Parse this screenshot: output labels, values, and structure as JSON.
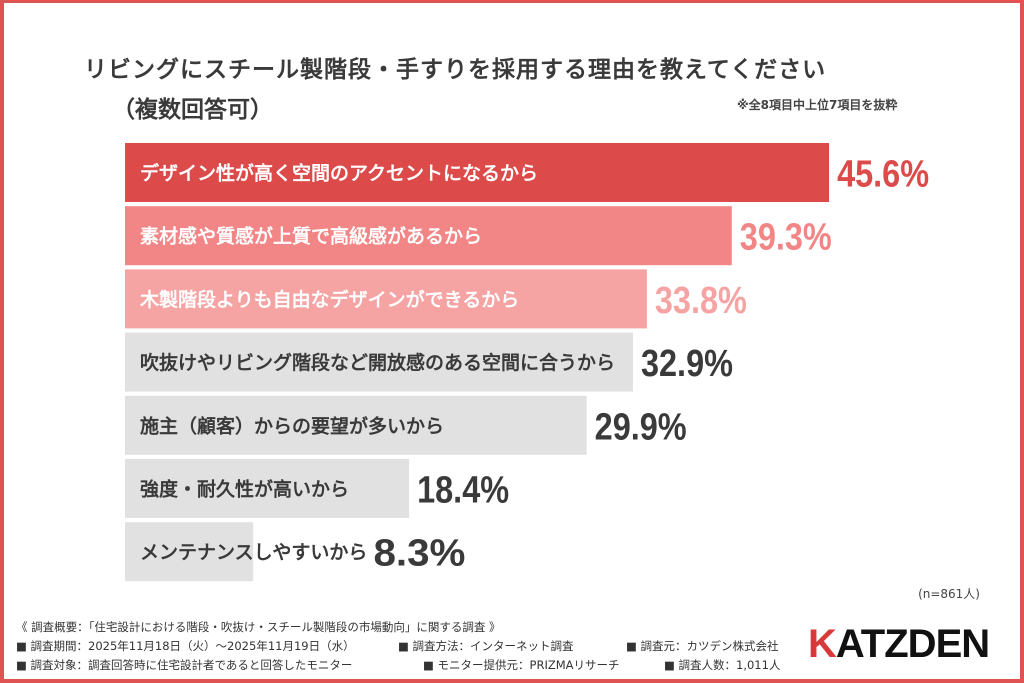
{
  "chart_data": {
    "type": "bar",
    "orientation": "horizontal",
    "title": "リビングにスチール製階段・手すりを採用する理由を教えてください",
    "subtitle": "（複数回答可）",
    "note": "※全8項目中上位7項目を抜粋",
    "categories": [
      "デザイン性が高く空間のアクセントになるから",
      "素材感や質感が上質で高級感があるから",
      "木製階段よりも自由なデザインができるから",
      "吹抜けやリビング階段など開放感のある空間に合うから",
      "施主（顧客）からの要望が多いから",
      "強度・耐久性が高いから",
      "メンテナンスしやすいから"
    ],
    "values": [
      45.6,
      39.3,
      33.8,
      32.9,
      29.9,
      18.4,
      8.3
    ],
    "labels": [
      "45.6%",
      "39.3%",
      "33.8%",
      "32.9%",
      "29.9%",
      "18.4%",
      "8.3%"
    ],
    "bar_colors": [
      "#dc4a4a",
      "#f28585",
      "#f6a3a3",
      "#e1e1e1",
      "#e1e1e1",
      "#e1e1e1",
      "#e1e1e1"
    ],
    "label_colors": [
      "#dc4a4a",
      "#f28585",
      "#f6a3a3",
      "#3a3a3a",
      "#3a3a3a",
      "#3a3a3a",
      "#3a3a3a"
    ],
    "text_colors": [
      "#ffffff",
      "#ffffff",
      "#ffffff",
      "#3a3a3a",
      "#3a3a3a",
      "#3a3a3a",
      "#3a3a3a"
    ],
    "sample": "(n=861人)",
    "grid": false
  },
  "footer": {
    "line1": "《 調査概要：「住宅設計における階段・吹抜け・スチール製階段の市場動向」に関する調査 》",
    "period": "■ 調査期間：2025年11月18日（火）～2025年11月19日（水）",
    "method": "■ 調査方法：インターネット調査",
    "org": "■ 調査元：カツデン株式会社",
    "target": "■ 調査対象：調査回答時に住宅設計者であると回答したモニター",
    "provider": "■ モニター提供元：PRIZMAリサーチ",
    "count": "■ 調査人数：1,011人"
  },
  "logo": {
    "text": "KATZDEN",
    "accent_color": "#d63a3a"
  }
}
